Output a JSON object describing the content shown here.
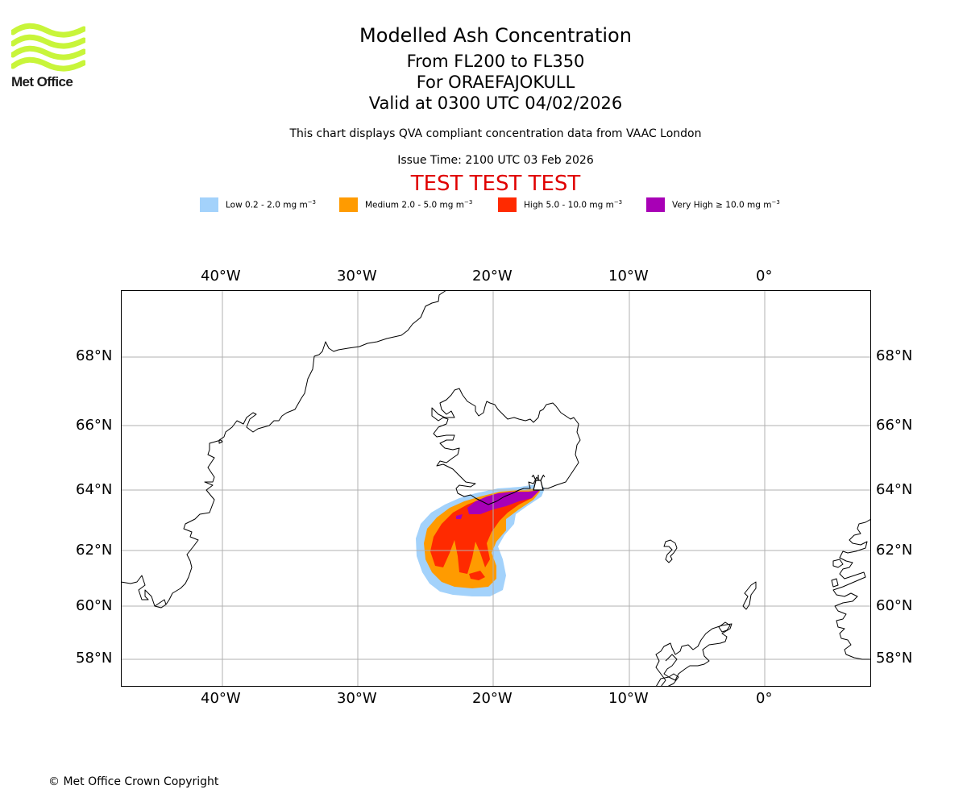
{
  "header": {
    "title": "Modelled Ash Concentration",
    "subtitle": "From FL200 to FL350",
    "volcano_line": "For ORAEFAJOKULL",
    "valid_line": "Valid at 0300 UTC 04/02/2026",
    "qva_note": "This chart displays QVA compliant concentration data from VAAC London",
    "issue_time": "Issue Time: 2100 UTC 03 Feb 2026",
    "test_banner": "TEST TEST TEST"
  },
  "logo": {
    "text": "Met Office",
    "color": "#c8f53a"
  },
  "legend": [
    {
      "name": "low",
      "label": "Low 0.2 - 2.0 mg m",
      "unit_exp": "−3",
      "color": "#a3d2fb"
    },
    {
      "name": "medium",
      "label": "Medium 2.0 - 5.0 mg m",
      "unit_exp": "−3",
      "color": "#ff9b00"
    },
    {
      "name": "high",
      "label": "High 5.0 - 10.0 mg m",
      "unit_exp": "−3",
      "color": "#ff2a00"
    },
    {
      "name": "very-high",
      "label": "Very High  ≥  10.0 mg m",
      "unit_exp": "−3",
      "color": "#a800b6"
    }
  ],
  "map": {
    "lon_ticks": [
      "40°W",
      "30°W",
      "20°W",
      "10°W",
      "0°"
    ],
    "lat_ticks": [
      "68°N",
      "66°N",
      "64°N",
      "62°N",
      "60°N",
      "58°N"
    ],
    "volcano_name": "ORAEFAJOKULL",
    "lon_range": [
      -47.5,
      7.7
    ],
    "lat_range": [
      57.1,
      70
    ]
  },
  "footer": {
    "copyright": "© Met Office Crown Copyright"
  }
}
